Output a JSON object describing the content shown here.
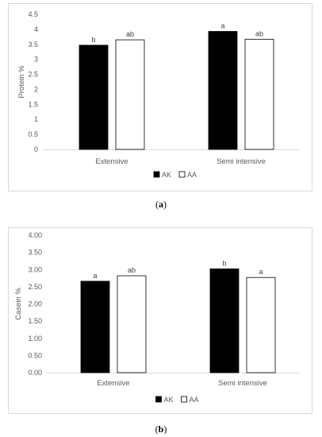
{
  "chart_data": [
    {
      "type": "bar",
      "categories": [
        "Extensive",
        "Semi intensive"
      ],
      "series": [
        {
          "name": "AK",
          "values": [
            3.47,
            3.93
          ],
          "labels": [
            "b",
            "a"
          ],
          "color": "#000000"
        },
        {
          "name": "AA",
          "values": [
            3.65,
            3.67
          ],
          "labels": [
            "ab",
            "ab"
          ],
          "color": "#ffffff"
        }
      ],
      "ylabel": "Protein %",
      "ylim": [
        0,
        4.5
      ],
      "yticks": [
        "0",
        "0.5",
        "1",
        "1.5",
        "2",
        "2.5",
        "3",
        "3.5",
        "4",
        "4.5"
      ],
      "grid": false,
      "legend": "bottom",
      "caption_prefix": "(",
      "caption_letter": "a",
      "caption_suffix": ")"
    },
    {
      "type": "bar",
      "categories": [
        "Extensive",
        "Semi intensive"
      ],
      "series": [
        {
          "name": "AK",
          "values": [
            2.66,
            3.02
          ],
          "labels": [
            "a",
            "b"
          ],
          "color": "#000000"
        },
        {
          "name": "AA",
          "values": [
            2.82,
            2.77
          ],
          "labels": [
            "ab",
            "a"
          ],
          "color": "#ffffff"
        }
      ],
      "ylabel": "Casein %",
      "ylim": [
        0,
        4
      ],
      "yticks": [
        "0.00",
        "0.50",
        "1.00",
        "1.50",
        "2.00",
        "2.50",
        "3.00",
        "3.50",
        "4.00"
      ],
      "grid": false,
      "legend": "bottom",
      "caption_prefix": "(",
      "caption_letter": "b",
      "caption_suffix": ")"
    }
  ]
}
